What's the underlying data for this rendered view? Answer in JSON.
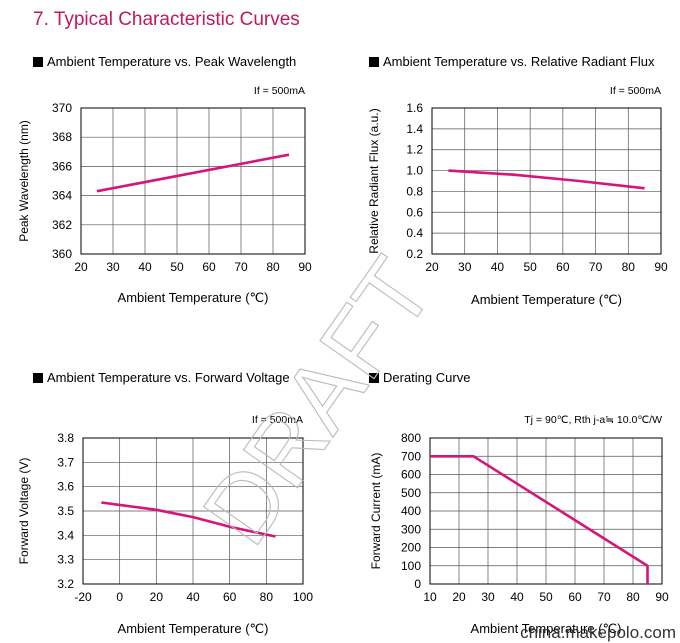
{
  "heading": "7. Typical Characteristic Curves",
  "watermark": "DRAFT",
  "site": "china.makepolo.com",
  "colors": {
    "heading": "#c2185b",
    "curve": "#d6147a"
  },
  "chart_data": [
    {
      "type": "line",
      "title": "Ambient Temperature vs. Peak Wavelength",
      "condition": "If = 500mA",
      "xlabel": "Ambient Temperature (℃)",
      "ylabel": "Peak Wavelength (nm)",
      "xlim": [
        20,
        90
      ],
      "ylim": [
        360,
        370
      ],
      "xticks": [
        20,
        30,
        40,
        50,
        60,
        70,
        80,
        90
      ],
      "yticks": [
        360,
        362,
        364,
        366,
        368,
        370
      ],
      "ytick_decimals": 0,
      "grid": true,
      "series": [
        {
          "x": [
            25,
            85
          ],
          "y": [
            364.3,
            366.8
          ]
        }
      ]
    },
    {
      "type": "line",
      "title": "Ambient Temperature vs. Relative Radiant Flux",
      "condition": "If = 500mA",
      "xlabel": "Ambient Temperature (℃)",
      "ylabel": "Relative Radiant Flux (a.u.)",
      "xlim": [
        20,
        90
      ],
      "ylim": [
        0.2,
        1.6
      ],
      "xticks": [
        20,
        30,
        40,
        50,
        60,
        70,
        80,
        90
      ],
      "yticks": [
        0.2,
        0.4,
        0.6,
        0.8,
        1.0,
        1.2,
        1.4,
        1.6
      ],
      "ytick_decimals": 1,
      "grid": true,
      "series": [
        {
          "x": [
            25,
            45,
            65,
            85
          ],
          "y": [
            1.0,
            0.96,
            0.9,
            0.83
          ]
        }
      ]
    },
    {
      "type": "line",
      "title": "Ambient Temperature vs. Forward Voltage",
      "condition": "If = 500mA",
      "xlabel": "Ambient Temperature (℃)",
      "ylabel": "Forward Voltage (V)",
      "xlim": [
        -20,
        100
      ],
      "ylim": [
        3.2,
        3.8
      ],
      "xticks": [
        -20,
        0,
        20,
        40,
        60,
        80,
        100
      ],
      "yticks": [
        3.2,
        3.3,
        3.4,
        3.5,
        3.6,
        3.7,
        3.8
      ],
      "ytick_decimals": 1,
      "grid": true,
      "series": [
        {
          "x": [
            -10,
            0,
            20,
            40,
            60,
            85
          ],
          "y": [
            3.535,
            3.525,
            3.505,
            3.475,
            3.435,
            3.395
          ]
        }
      ]
    },
    {
      "type": "line",
      "title": "Derating Curve",
      "condition": "Tj = 90℃, Rth j-a≒ 10.0℃/W",
      "xlabel": "Ambient Temperature (℃)",
      "ylabel": "Forward Current (mA)",
      "xlim": [
        10,
        90
      ],
      "ylim": [
        0,
        800
      ],
      "xticks": [
        10,
        20,
        30,
        40,
        50,
        60,
        70,
        80,
        90
      ],
      "yticks": [
        0,
        100,
        200,
        300,
        400,
        500,
        600,
        700,
        800
      ],
      "ytick_decimals": 0,
      "grid": true,
      "series": [
        {
          "x": [
            10,
            25,
            85,
            85
          ],
          "y": [
            700,
            700,
            100,
            0
          ]
        }
      ]
    }
  ]
}
